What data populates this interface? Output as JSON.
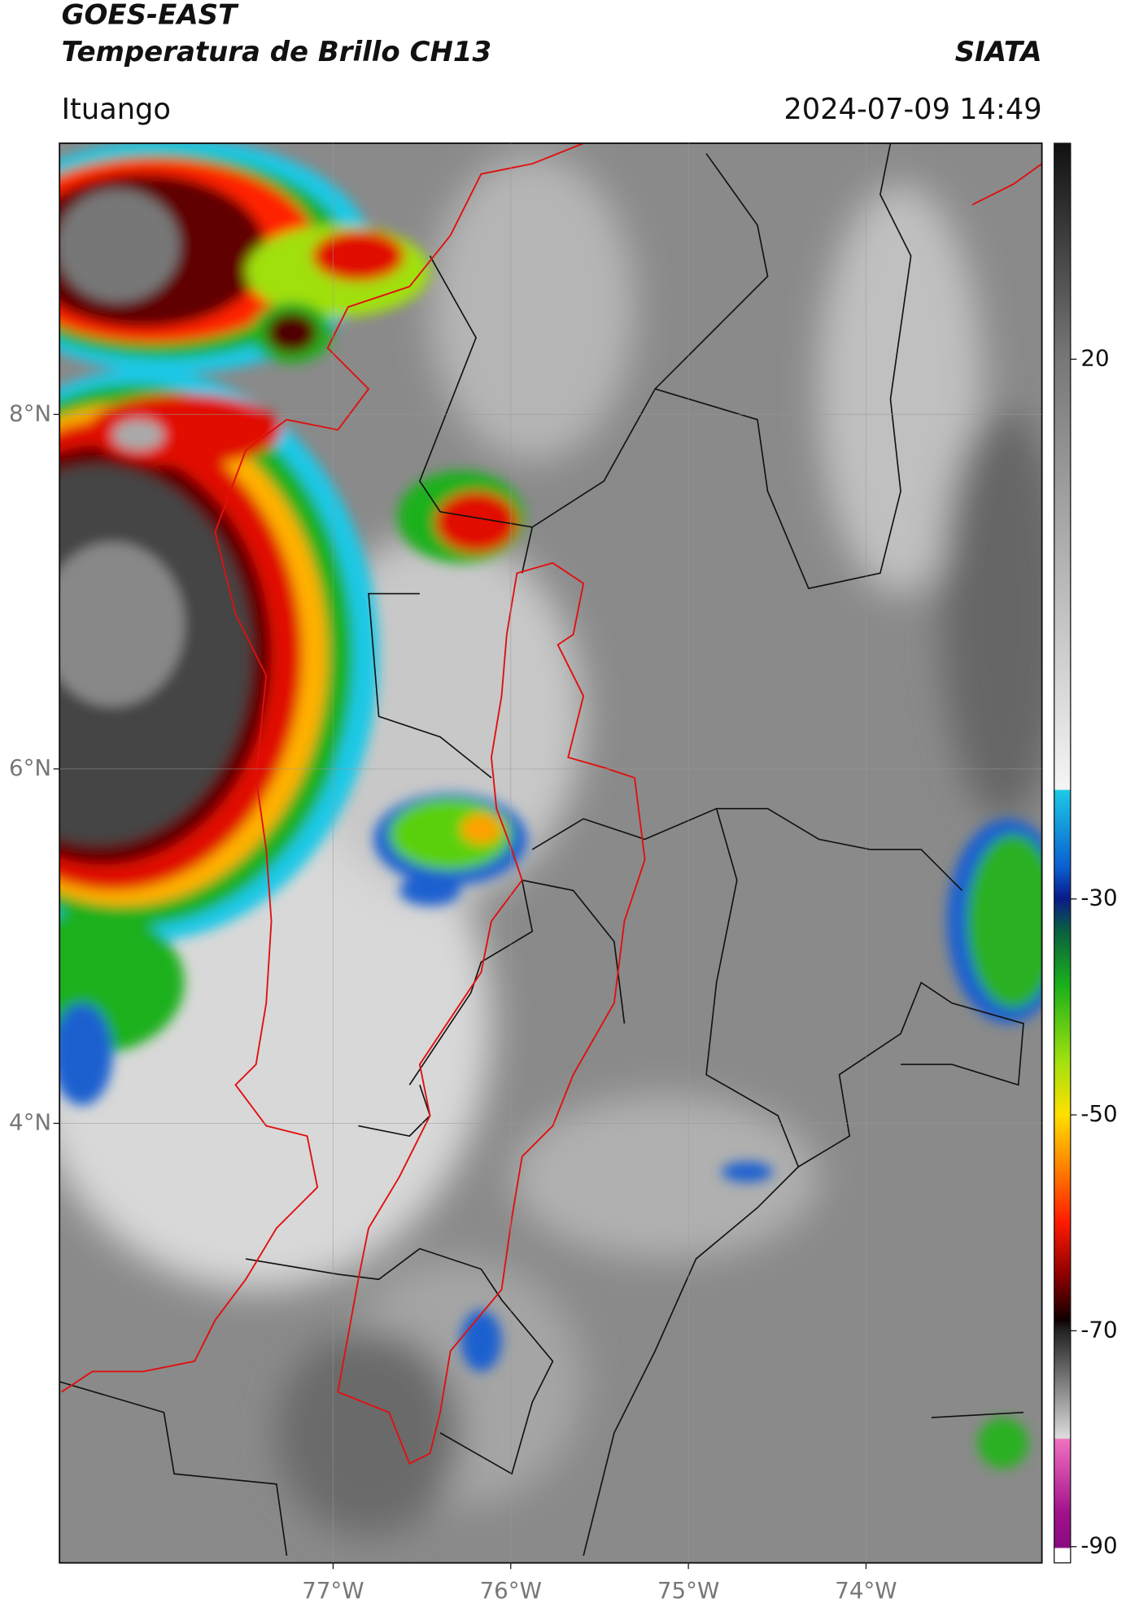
{
  "header": {
    "title": "GOES-EAST",
    "subtitle": "Temperatura de Brillo CH13",
    "brand": "SIATA",
    "location": "Ituango",
    "datetime": "2024-07-09 14:49"
  },
  "map": {
    "xlim": [
      -78.54,
      -73.01
    ],
    "ylim": [
      1.52,
      9.53
    ],
    "xticks": [
      {
        "value": -77,
        "label": "77°W"
      },
      {
        "value": -76,
        "label": "76°W"
      },
      {
        "value": -75,
        "label": "75°W"
      },
      {
        "value": -74,
        "label": "74°W"
      }
    ],
    "yticks": [
      {
        "value": 8,
        "label": "8°N"
      },
      {
        "value": 6,
        "label": "6°N"
      },
      {
        "value": 4,
        "label": "4°N"
      }
    ],
    "grid": true
  },
  "colorbar": {
    "lim": [
      -91.5,
      40
    ],
    "ticks": [
      20,
      -30,
      -50,
      -70,
      -90
    ]
  }
}
